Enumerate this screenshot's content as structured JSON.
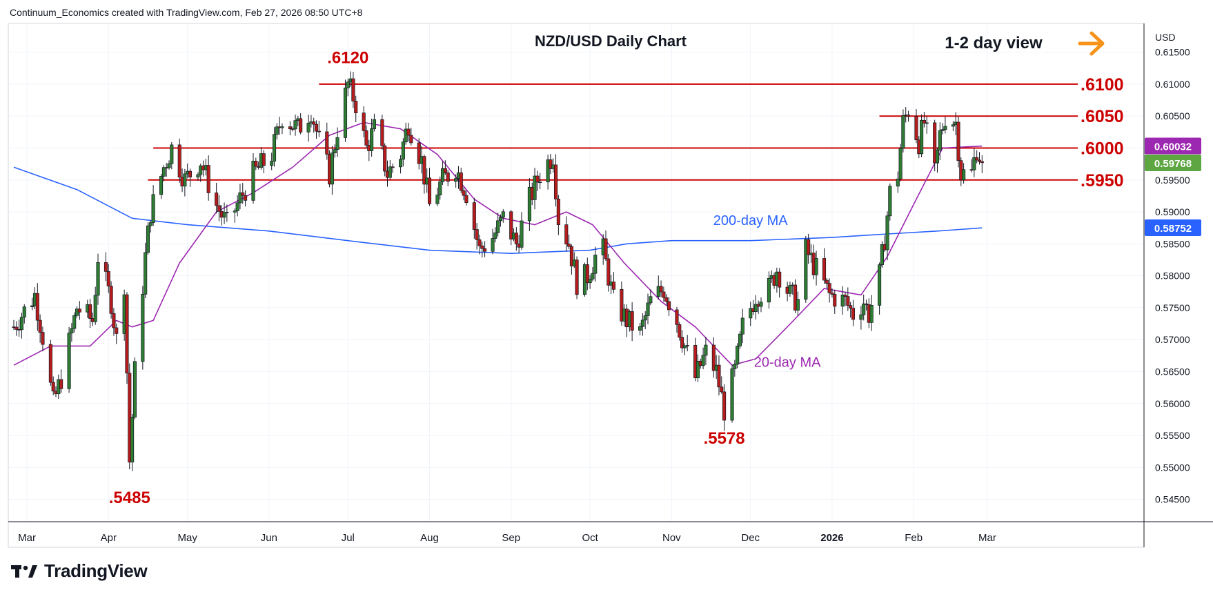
{
  "header": "Continuum_Economics created with TradingView.com, Feb 27, 2026 08:50 UTC+8",
  "brand": "TradingView",
  "colors": {
    "bull": "#2e7d32",
    "bear": "#b71c1c",
    "level": "#cc0000",
    "ma200": "#2962ff",
    "ma20": "#9c27b0",
    "arrow": "#f7931a",
    "badge_ma20": "#9c27b0",
    "badge_price": "#5da641",
    "badge_ma200": "#2962ff"
  },
  "chart_data": {
    "type": "candlestick",
    "title": "NZD/USD Daily Chart",
    "subtitle": "1-2 day view",
    "currency": "USD",
    "y_ticks": [
      "0.61500",
      "0.61000",
      "0.60500",
      "0.60000",
      "0.59500",
      "0.59000",
      "0.58500",
      "0.58000",
      "0.57500",
      "0.57000",
      "0.56500",
      "0.56000",
      "0.55500",
      "0.55000",
      "0.54500"
    ],
    "ylim": [
      0.5415,
      0.6195
    ],
    "x_labels": [
      {
        "label": "Mar",
        "date": "2025-03-01"
      },
      {
        "label": "Apr",
        "date": "2025-04-01"
      },
      {
        "label": "May",
        "date": "2025-05-01"
      },
      {
        "label": "Jun",
        "date": "2025-06-01"
      },
      {
        "label": "Jul",
        "date": "2025-07-01"
      },
      {
        "label": "Aug",
        "date": "2025-08-01"
      },
      {
        "label": "Sep",
        "date": "2025-09-01"
      },
      {
        "label": "Oct",
        "date": "2025-10-01"
      },
      {
        "label": "Nov",
        "date": "2025-11-01"
      },
      {
        "label": "Dec",
        "date": "2025-12-01"
      },
      {
        "label": "2026",
        "date": "2026-01-01",
        "bold": true
      },
      {
        "label": "Feb",
        "date": "2026-02-01"
      },
      {
        "label": "Mar",
        "date": "2026-03-01"
      }
    ],
    "levels": [
      {
        "label": ".6100",
        "value": 0.61,
        "from": "2025-06-20"
      },
      {
        "label": ".6050",
        "value": 0.605,
        "from": "2026-01-19"
      },
      {
        "label": ".6000",
        "value": 0.6,
        "from": "2025-04-18"
      },
      {
        "label": ".5950",
        "value": 0.595,
        "from": "2025-04-16"
      }
    ],
    "annotations": [
      {
        "label": ".6120",
        "date": "2025-07-01",
        "value": 0.612,
        "position": "above"
      },
      {
        "label": ".5485",
        "date": "2025-04-09",
        "value": 0.5485,
        "position": "below"
      },
      {
        "label": ".5578",
        "date": "2025-11-21",
        "value": 0.5578,
        "position": "below"
      }
    ],
    "ma_labels": [
      {
        "label": "200-day MA",
        "date": "2025-12-01",
        "value": 0.5887
      },
      {
        "label": "20-day MA",
        "date": "2025-12-15",
        "value": 0.5665
      }
    ],
    "badges": [
      {
        "value": "0.60032",
        "color": "ma20"
      },
      {
        "value": "0.59768",
        "color": "bull"
      },
      {
        "value": "0.58752",
        "color": "ma200"
      }
    ],
    "price_path": [
      [
        "2025-02-24",
        0.572
      ],
      [
        "2025-03-04",
        0.577
      ],
      [
        "2025-03-07",
        0.5705
      ],
      [
        "2025-03-11",
        0.56
      ],
      [
        "2025-03-14",
        0.564
      ],
      [
        "2025-03-20",
        0.575
      ],
      [
        "2025-03-26",
        0.573
      ],
      [
        "2025-03-28",
        0.583
      ],
      [
        "2025-04-02",
        0.576
      ],
      [
        "2025-04-04",
        0.57
      ],
      [
        "2025-04-07",
        0.579
      ],
      [
        "2025-04-09",
        0.551
      ],
      [
        "2025-04-11",
        0.565
      ],
      [
        "2025-04-15",
        0.583
      ],
      [
        "2025-04-17",
        0.59
      ],
      [
        "2025-04-22",
        0.597
      ],
      [
        "2025-04-25",
        0.6
      ],
      [
        "2025-04-30",
        0.595
      ],
      [
        "2025-05-06",
        0.598
      ],
      [
        "2025-05-12",
        0.591
      ],
      [
        "2025-05-16",
        0.588
      ],
      [
        "2025-05-21",
        0.592
      ],
      [
        "2025-05-26",
        0.596
      ],
      [
        "2025-06-02",
        0.599
      ],
      [
        "2025-06-06",
        0.605
      ],
      [
        "2025-06-12",
        0.603
      ],
      [
        "2025-06-17",
        0.606
      ],
      [
        "2025-06-20",
        0.601
      ],
      [
        "2025-06-24",
        0.596
      ],
      [
        "2025-06-27",
        0.603
      ],
      [
        "2025-07-01",
        0.61
      ],
      [
        "2025-07-04",
        0.607
      ],
      [
        "2025-07-08",
        0.6
      ],
      [
        "2025-07-11",
        0.603
      ],
      [
        "2025-07-16",
        0.596
      ],
      [
        "2025-07-21",
        0.599
      ],
      [
        "2025-07-24",
        0.604
      ],
      [
        "2025-07-29",
        0.598
      ],
      [
        "2025-08-01",
        0.591
      ],
      [
        "2025-08-06",
        0.595
      ],
      [
        "2025-08-11",
        0.597
      ],
      [
        "2025-08-15",
        0.593
      ],
      [
        "2025-08-20",
        0.584
      ],
      [
        "2025-08-25",
        0.586
      ],
      [
        "2025-08-29",
        0.589
      ],
      [
        "2025-09-03",
        0.585
      ],
      [
        "2025-09-08",
        0.592
      ],
      [
        "2025-09-12",
        0.596
      ],
      [
        "2025-09-17",
        0.599
      ],
      [
        "2025-09-19",
        0.589
      ],
      [
        "2025-09-23",
        0.585
      ],
      [
        "2025-09-26",
        0.579
      ],
      [
        "2025-09-30",
        0.58
      ],
      [
        "2025-10-03",
        0.583
      ],
      [
        "2025-10-06",
        0.584
      ],
      [
        "2025-10-10",
        0.576
      ],
      [
        "2025-10-15",
        0.573
      ],
      [
        "2025-10-20",
        0.571
      ],
      [
        "2025-10-24",
        0.576
      ],
      [
        "2025-10-29",
        0.578
      ],
      [
        "2025-11-03",
        0.573
      ],
      [
        "2025-11-06",
        0.569
      ],
      [
        "2025-11-10",
        0.564
      ],
      [
        "2025-11-14",
        0.568
      ],
      [
        "2025-11-18",
        0.565
      ],
      [
        "2025-11-21",
        0.559
      ],
      [
        "2025-11-25",
        0.565
      ],
      [
        "2025-11-28",
        0.572
      ],
      [
        "2025-12-03",
        0.577
      ],
      [
        "2025-12-08",
        0.578
      ],
      [
        "2025-12-11",
        0.581
      ],
      [
        "2025-12-16",
        0.577
      ],
      [
        "2025-12-19",
        0.576
      ],
      [
        "2025-12-22",
        0.584
      ],
      [
        "2025-12-26",
        0.581
      ],
      [
        "2025-12-31",
        0.577
      ],
      [
        "2026-01-06",
        0.576
      ],
      [
        "2026-01-09",
        0.574
      ],
      [
        "2026-01-13",
        0.576
      ],
      [
        "2026-01-15",
        0.574
      ],
      [
        "2026-01-19",
        0.58
      ],
      [
        "2026-01-21",
        0.586
      ],
      [
        "2026-01-23",
        0.593
      ],
      [
        "2026-01-26",
        0.596
      ],
      [
        "2026-01-28",
        0.604
      ],
      [
        "2026-01-30",
        0.606
      ],
      [
        "2026-02-03",
        0.601
      ],
      [
        "2026-02-05",
        0.604
      ],
      [
        "2026-02-09",
        0.596
      ],
      [
        "2026-02-11",
        0.602
      ],
      [
        "2026-02-13",
        0.605
      ],
      [
        "2026-02-17",
        0.604
      ],
      [
        "2026-02-19",
        0.596
      ],
      [
        "2026-02-23",
        0.596
      ],
      [
        "2026-02-25",
        0.6
      ],
      [
        "2026-02-27",
        0.5977
      ]
    ],
    "ma20_path": [
      [
        "2025-02-24",
        0.566
      ],
      [
        "2025-03-10",
        0.569
      ],
      [
        "2025-03-25",
        0.569
      ],
      [
        "2025-04-04",
        0.573
      ],
      [
        "2025-04-10",
        0.572
      ],
      [
        "2025-04-18",
        0.573
      ],
      [
        "2025-04-28",
        0.582
      ],
      [
        "2025-05-12",
        0.59
      ],
      [
        "2025-05-26",
        0.593
      ],
      [
        "2025-06-10",
        0.597
      ],
      [
        "2025-06-24",
        0.602
      ],
      [
        "2025-07-07",
        0.604
      ],
      [
        "2025-07-21",
        0.603
      ],
      [
        "2025-08-04",
        0.599
      ],
      [
        "2025-08-18",
        0.592
      ],
      [
        "2025-08-29",
        0.589
      ],
      [
        "2025-09-10",
        0.588
      ],
      [
        "2025-09-22",
        0.59
      ],
      [
        "2025-10-02",
        0.588
      ],
      [
        "2025-10-14",
        0.582
      ],
      [
        "2025-10-28",
        0.576
      ],
      [
        "2025-11-10",
        0.572
      ],
      [
        "2025-11-24",
        0.566
      ],
      [
        "2025-12-03",
        0.567
      ],
      [
        "2025-12-15",
        0.572
      ],
      [
        "2025-12-29",
        0.578
      ],
      [
        "2026-01-12",
        0.577
      ],
      [
        "2026-01-22",
        0.583
      ],
      [
        "2026-02-02",
        0.592
      ],
      [
        "2026-02-12",
        0.6
      ],
      [
        "2026-02-27",
        0.6003
      ]
    ],
    "ma200_path": [
      [
        "2025-02-24",
        0.597
      ],
      [
        "2025-03-20",
        0.5935
      ],
      [
        "2025-04-10",
        0.589
      ],
      [
        "2025-05-01",
        0.588
      ],
      [
        "2025-06-01",
        0.587
      ],
      [
        "2025-07-01",
        0.5855
      ],
      [
        "2025-08-01",
        0.584
      ],
      [
        "2025-09-01",
        0.5835
      ],
      [
        "2025-10-01",
        0.584
      ],
      [
        "2025-10-15",
        0.585
      ],
      [
        "2025-11-01",
        0.5855
      ],
      [
        "2025-12-01",
        0.5855
      ],
      [
        "2026-01-01",
        0.586
      ],
      [
        "2026-01-20",
        0.5865
      ],
      [
        "2026-02-10",
        0.587
      ],
      [
        "2026-02-27",
        0.5875
      ]
    ]
  }
}
